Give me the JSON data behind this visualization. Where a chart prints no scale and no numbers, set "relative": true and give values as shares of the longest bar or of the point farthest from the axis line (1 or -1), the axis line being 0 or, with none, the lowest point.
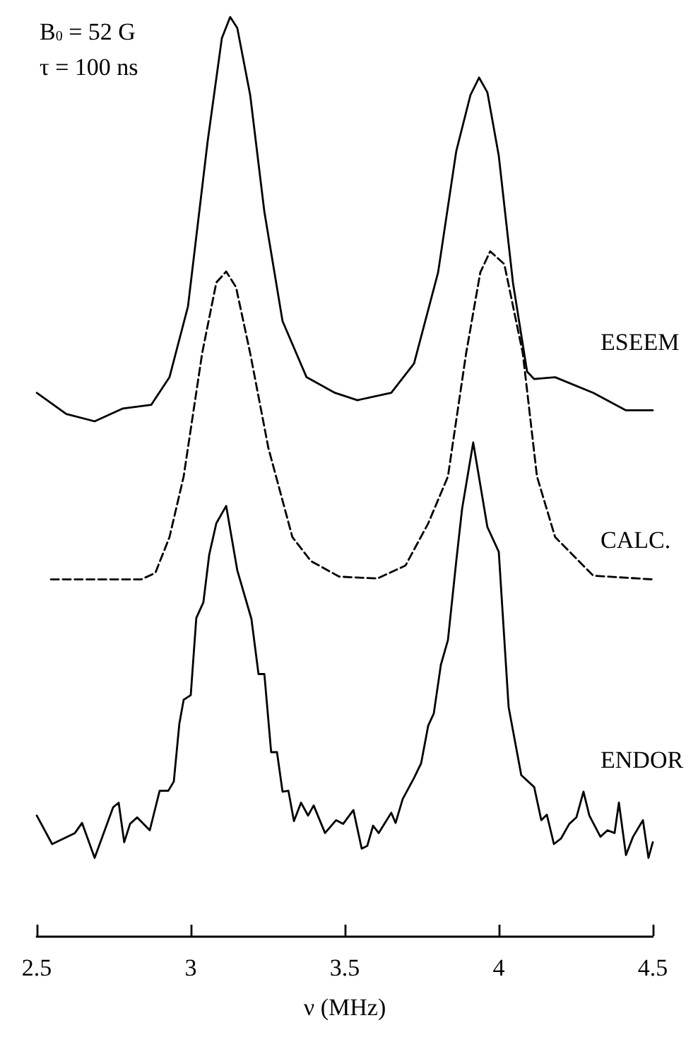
{
  "chart_data": {
    "type": "line",
    "relative": true,
    "xlabel": "ν (MHz)",
    "xlim": [
      2.5,
      4.5
    ],
    "xticks": [
      2.5,
      3,
      3.5,
      4,
      4.5
    ],
    "grid": false,
    "legend": false,
    "marker": "none",
    "tick_labels": "x",
    "annotations": [
      "B$_{0}$ = 52 G",
      "τ = 100 ns"
    ],
    "series": [
      {
        "name": "ESEEM",
        "color": "#000000",
        "line_style": "solid",
        "x": [
          2.5,
          2.596,
          2.688,
          2.78,
          2.872,
          2.931,
          2.991,
          3.055,
          3.101,
          3.128,
          3.151,
          3.193,
          3.239,
          3.298,
          3.376,
          3.468,
          3.541,
          3.651,
          3.725,
          3.803,
          3.862,
          3.908,
          3.936,
          3.963,
          4.0,
          4.046,
          4.092,
          4.115,
          4.183,
          4.307,
          4.413,
          4.5
        ],
        "values": [
          0.591,
          0.568,
          0.56,
          0.574,
          0.578,
          0.608,
          0.685,
          0.865,
          0.977,
          1,
          0.988,
          0.915,
          0.788,
          0.669,
          0.608,
          0.591,
          0.583,
          0.591,
          0.623,
          0.722,
          0.854,
          0.915,
          0.934,
          0.918,
          0.849,
          0.711,
          0.614,
          0.606,
          0.608,
          0.591,
          0.572,
          0.572
        ]
      },
      {
        "name": "CALC.",
        "color": "#000000",
        "line_style": "dashed",
        "x": [
          2.546,
          2.839,
          2.885,
          2.931,
          2.977,
          3.037,
          3.083,
          3.115,
          3.147,
          3.193,
          3.252,
          3.33,
          3.39,
          3.482,
          3.606,
          3.697,
          3.771,
          3.835,
          3.894,
          3.94,
          3.972,
          4.018,
          4.078,
          4.124,
          4.183,
          4.307,
          4.5
        ],
        "values": [
          0.388,
          0.388,
          0.395,
          0.434,
          0.5,
          0.634,
          0.711,
          0.723,
          0.706,
          0.634,
          0.531,
          0.434,
          0.408,
          0.391,
          0.389,
          0.403,
          0.449,
          0.5,
          0.634,
          0.722,
          0.745,
          0.731,
          0.634,
          0.5,
          0.434,
          0.392,
          0.388
        ]
      },
      {
        "name": "ENDOR",
        "color": "#000000",
        "line_style": "solid",
        "x": [
          2.5,
          2.55,
          2.624,
          2.647,
          2.688,
          2.748,
          2.766,
          2.784,
          2.803,
          2.826,
          2.867,
          2.899,
          2.927,
          2.945,
          2.963,
          2.977,
          3.0,
          3.018,
          3.041,
          3.06,
          3.083,
          3.115,
          3.151,
          3.197,
          3.22,
          3.239,
          3.261,
          3.28,
          3.298,
          3.317,
          3.335,
          3.358,
          3.381,
          3.399,
          3.436,
          3.472,
          3.495,
          3.528,
          3.555,
          3.573,
          3.592,
          3.61,
          3.651,
          3.665,
          3.688,
          3.725,
          3.748,
          3.771,
          3.789,
          3.812,
          3.835,
          3.862,
          3.881,
          3.917,
          3.963,
          4.0,
          4.032,
          4.073,
          4.115,
          4.138,
          4.156,
          4.179,
          4.202,
          4.229,
          4.252,
          4.275,
          4.294,
          4.33,
          4.353,
          4.376,
          4.39,
          4.413,
          4.436,
          4.468,
          4.486,
          4.5
        ],
        "values": [
          0.131,
          0.1,
          0.112,
          0.123,
          0.085,
          0.14,
          0.145,
          0.102,
          0.122,
          0.129,
          0.115,
          0.158,
          0.158,
          0.168,
          0.231,
          0.257,
          0.262,
          0.346,
          0.363,
          0.415,
          0.449,
          0.468,
          0.398,
          0.345,
          0.285,
          0.285,
          0.2,
          0.2,
          0.157,
          0.158,
          0.125,
          0.145,
          0.131,
          0.142,
          0.112,
          0.126,
          0.122,
          0.137,
          0.095,
          0.098,
          0.12,
          0.112,
          0.134,
          0.123,
          0.149,
          0.172,
          0.188,
          0.229,
          0.242,
          0.295,
          0.322,
          0.408,
          0.465,
          0.537,
          0.445,
          0.418,
          0.249,
          0.175,
          0.162,
          0.126,
          0.132,
          0.1,
          0.106,
          0.122,
          0.129,
          0.157,
          0.131,
          0.108,
          0.115,
          0.112,
          0.145,
          0.088,
          0.108,
          0.126,
          0.085,
          0.102
        ]
      }
    ]
  }
}
